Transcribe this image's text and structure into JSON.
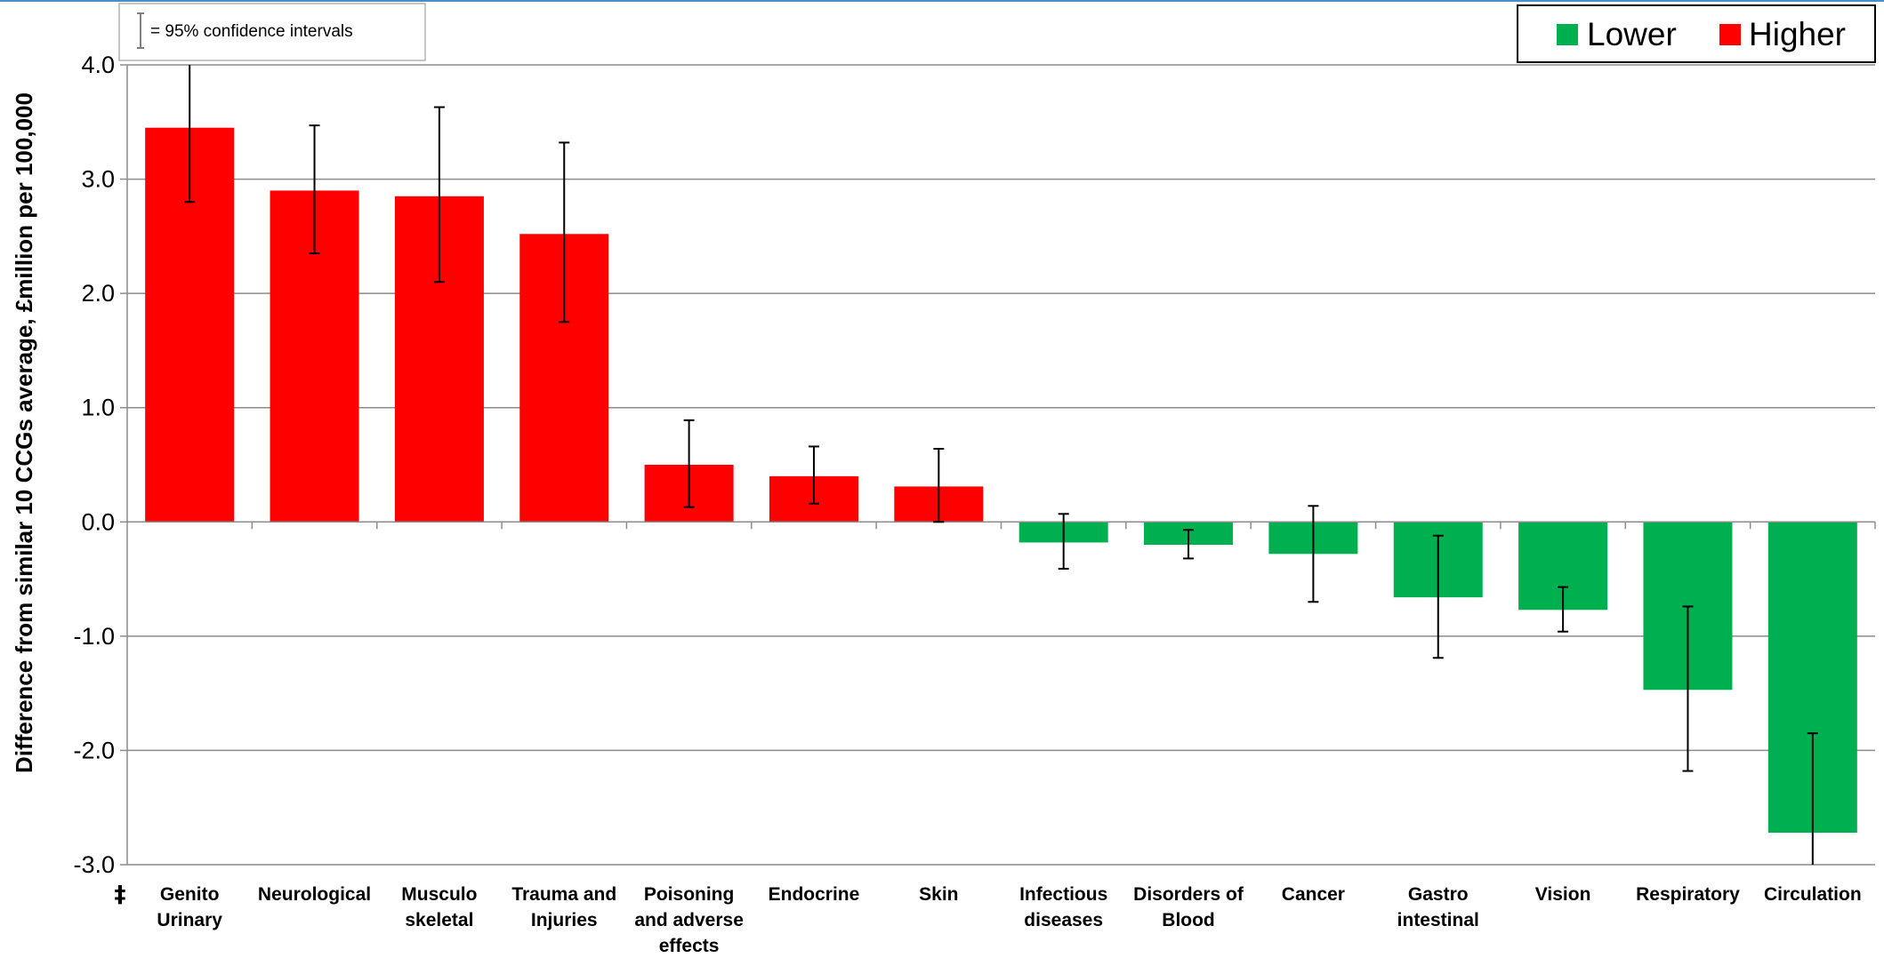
{
  "chart_data": {
    "type": "bar",
    "ylabel": "Difference from similar 10 CCGs average, £million per  100,000",
    "ylim": [
      -3.0,
      4.0
    ],
    "yticks": [
      -3.0,
      -2.0,
      -1.0,
      0.0,
      1.0,
      2.0,
      3.0,
      4.0
    ],
    "ytick_labels": [
      "-3.0",
      "-2.0",
      "-1.0",
      "0.0",
      "1.0",
      "2.0",
      "3.0",
      "4.0"
    ],
    "grid": "horizontal",
    "legend_position": "top-right",
    "legend": [
      {
        "label": "Lower",
        "color": "#00b050"
      },
      {
        "label": "Higher",
        "color": "#ff0000"
      }
    ],
    "ci_note": "= 95% confidence intervals",
    "footnote_marker": "‡",
    "categories": [
      [
        "Genito",
        "Urinary"
      ],
      [
        "Neurological"
      ],
      [
        "Musculo",
        "skeletal"
      ],
      [
        "Trauma and",
        "Injuries"
      ],
      [
        "Poisoning",
        "and adverse",
        "effects"
      ],
      [
        "Endocrine"
      ],
      [
        "Skin"
      ],
      [
        "Infectious",
        "diseases"
      ],
      [
        "Disorders of",
        "Blood"
      ],
      [
        "Cancer"
      ],
      [
        "Gastro",
        "intestinal"
      ],
      [
        "Vision"
      ],
      [
        "Respiratory"
      ],
      [
        "Circulation"
      ]
    ],
    "values": [
      3.45,
      2.9,
      2.85,
      2.52,
      0.5,
      0.4,
      0.31,
      -0.18,
      -0.2,
      -0.28,
      -0.66,
      -0.77,
      -1.47,
      -2.72
    ],
    "ci_lower": [
      2.8,
      2.35,
      2.1,
      1.75,
      0.13,
      0.16,
      0.0,
      -0.41,
      -0.32,
      -0.7,
      -1.19,
      -0.96,
      -2.18,
      -3.0
    ],
    "ci_upper": [
      4.0,
      3.47,
      3.63,
      3.32,
      0.89,
      0.66,
      0.64,
      0.07,
      -0.07,
      0.14,
      -0.12,
      -0.57,
      -0.74,
      -1.85
    ],
    "bar_colors": [
      "#ff0000",
      "#ff0000",
      "#ff0000",
      "#ff0000",
      "#ff0000",
      "#ff0000",
      "#ff0000",
      "#00b050",
      "#00b050",
      "#00b050",
      "#00b050",
      "#00b050",
      "#00b050",
      "#00b050"
    ]
  }
}
